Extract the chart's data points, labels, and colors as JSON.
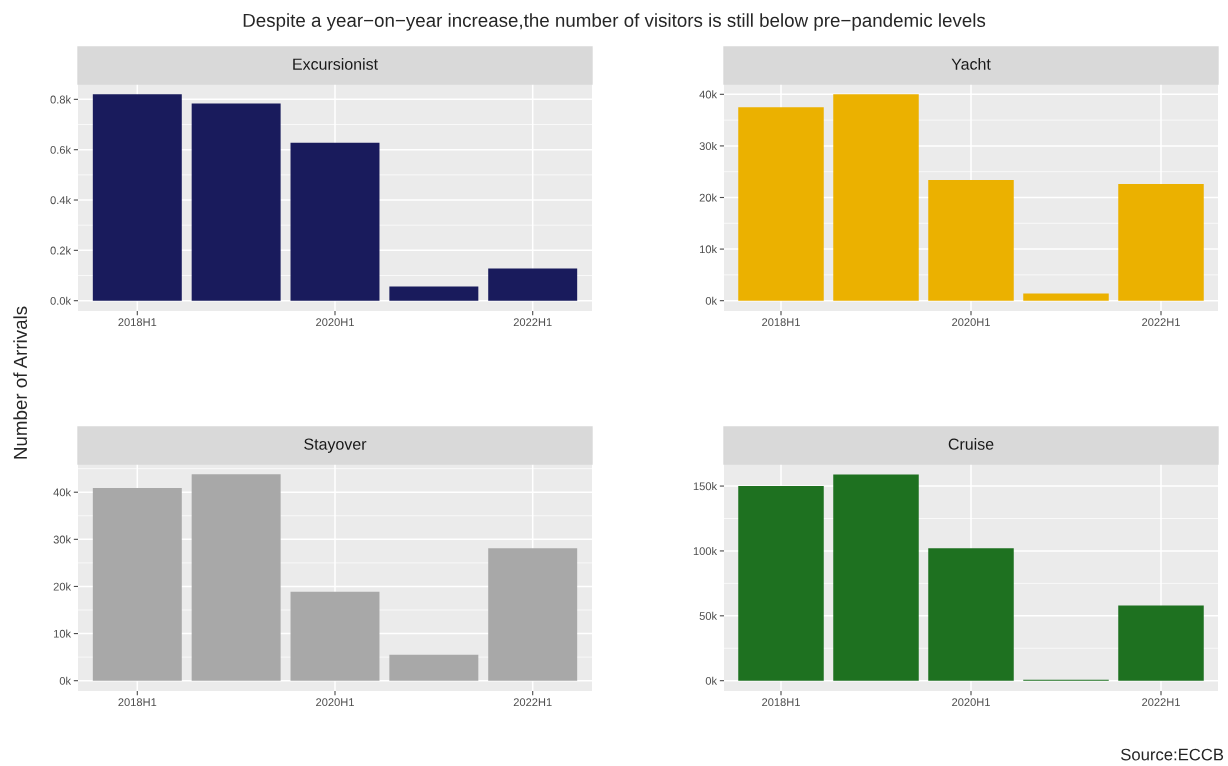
{
  "chart_data": [
    {
      "type": "bar",
      "title": "Excursionist",
      "annotations": [
        "Despite a year−on−year increase,the number of visitors is still below pre−pandemic levels"
      ],
      "ylabel": "Number of Arrivals",
      "categories": [
        "2018H1",
        null,
        "2020H1",
        null,
        "2022H1"
      ],
      "values": [
        820,
        784,
        628,
        56,
        128
      ],
      "color": "#191b5c",
      "ylim": [
        -41,
        861
      ],
      "yticks": [
        {
          "value": 0,
          "label": "0.0k"
        },
        {
          "value": 200,
          "label": "0.2k"
        },
        {
          "value": 400,
          "label": "0.4k"
        },
        {
          "value": 600,
          "label": "0.6k"
        },
        {
          "value": 800,
          "label": "0.8k"
        }
      ],
      "grid": true
    },
    {
      "type": "bar",
      "title": "Yacht",
      "categories": [
        "2018H1",
        null,
        "2020H1",
        null,
        "2022H1"
      ],
      "values": [
        37500,
        40000,
        23400,
        1400,
        22600
      ],
      "color": "#ebb100",
      "ylim": [
        -2000,
        42000
      ],
      "yticks": [
        {
          "value": 0,
          "label": "0k"
        },
        {
          "value": 10000,
          "label": "10k"
        },
        {
          "value": 20000,
          "label": "20k"
        },
        {
          "value": 30000,
          "label": "30k"
        },
        {
          "value": 40000,
          "label": "40k"
        }
      ],
      "grid": true
    },
    {
      "type": "bar",
      "title": "Stayover",
      "categories": [
        "2018H1",
        null,
        "2020H1",
        null,
        "2022H1"
      ],
      "values": [
        40900,
        43800,
        18900,
        5500,
        28100
      ],
      "color": "#a8a8a8",
      "ylim": [
        -2190,
        45990
      ],
      "yticks": [
        {
          "value": 0,
          "label": "0k"
        },
        {
          "value": 10000,
          "label": "10k"
        },
        {
          "value": 20000,
          "label": "20k"
        },
        {
          "value": 30000,
          "label": "30k"
        },
        {
          "value": 40000,
          "label": "40k"
        }
      ],
      "grid": true
    },
    {
      "type": "bar",
      "title": "Cruise",
      "annotations": [
        "Source:ECCB"
      ],
      "categories": [
        "2018H1",
        null,
        "2020H1",
        null,
        "2022H1"
      ],
      "values": [
        150000,
        159000,
        102000,
        800,
        58000
      ],
      "color": "#1e7120",
      "ylim": [
        -7950,
        167000
      ],
      "yticks": [
        {
          "value": 0,
          "label": "0k"
        },
        {
          "value": 50000,
          "label": "50k"
        },
        {
          "value": 100000,
          "label": "100k"
        },
        {
          "value": 150000,
          "label": "150k"
        }
      ],
      "grid": true
    }
  ]
}
